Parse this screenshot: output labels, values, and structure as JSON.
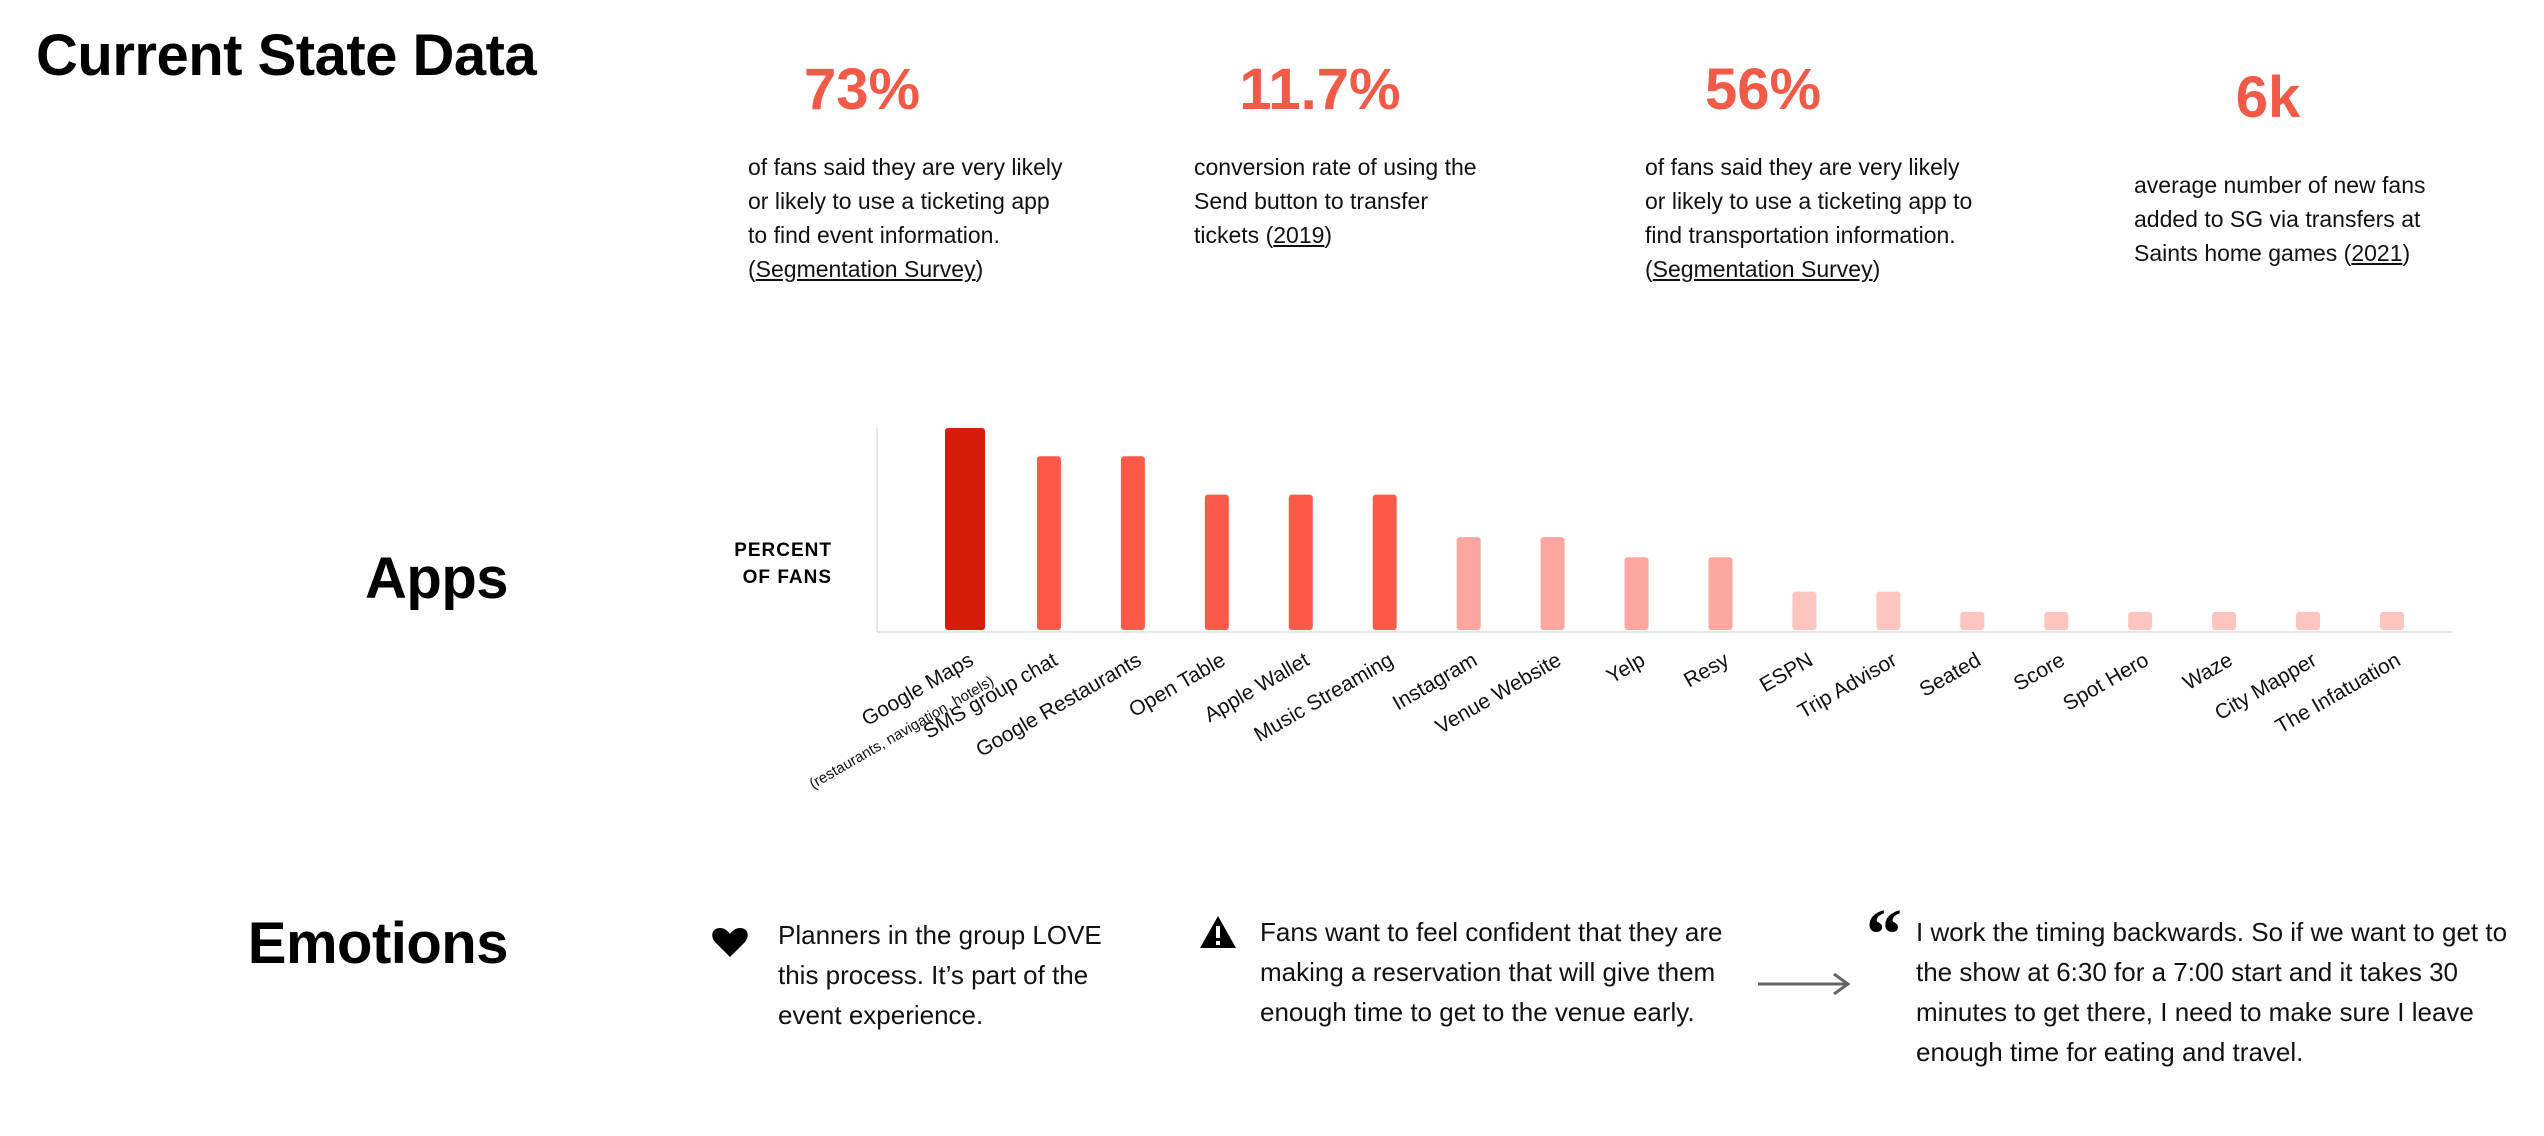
{
  "page_title": "Current State Data",
  "stats": [
    {
      "value": "73%",
      "pre": "of fans said they are very likely or likely to use a ticketing app to find event information. (",
      "link": "Segmentation Survey",
      "post": ")"
    },
    {
      "value": "11.7%",
      "pre": "conversion rate of using the Send button to transfer tickets (",
      "link": "2019",
      "post": ")"
    },
    {
      "value": "56%",
      "pre": "of fans said they are very likely or likely to use a ticketing app to find transportation information. (",
      "link": "Segmentation Survey",
      "post": ")"
    },
    {
      "value": "6k",
      "pre": "average number of new fans added to SG via transfers at Saints home games (",
      "link": "2021",
      "post": ")"
    }
  ],
  "sections": {
    "apps": "Apps",
    "emotions": "Emotions"
  },
  "chart_data": {
    "type": "bar",
    "title": "",
    "ylabel": "PERCENT OF FANS",
    "ylabel_lines": [
      "PERCENT",
      "OF FANS"
    ],
    "xlabel": "",
    "categories": [
      "Google Maps",
      "SMS group chat",
      "Google Restaurants",
      "Open Table",
      "Apple Wallet",
      "Music Streaming",
      "Instagram",
      "Venue Website",
      "Yelp",
      "Resy",
      "ESPN",
      "Trip Advisor",
      "Seated",
      "Score",
      "Spot Hero",
      "Waze",
      "City Mapper",
      "The Infatuation"
    ],
    "sublabel": {
      "category": "Google Maps",
      "text": "(restaurants, navigation, hotels)"
    },
    "values": [
      100,
      86,
      86,
      67,
      67,
      67,
      46,
      46,
      36,
      36,
      19,
      19,
      9,
      9,
      9,
      9,
      9,
      9
    ],
    "ylim": [
      0,
      100
    ],
    "colors": [
      "#d81c0b",
      "#fb5a48",
      "#fb5a48",
      "#fb5a48",
      "#fb5a48",
      "#fb5a48",
      "#fba79f",
      "#fba79f",
      "#fba79f",
      "#fba79f",
      "#fcc5bf",
      "#fcc5bf",
      "#fcc5bf",
      "#fcc5bf",
      "#fcc5bf",
      "#fcc5bf",
      "#fcc5bf",
      "#fcc5bf"
    ]
  },
  "emotions": [
    {
      "icon": "heart-icon",
      "text": "Planners in the group LOVE this process. It’s part of the event experience."
    },
    {
      "icon": "warning-icon",
      "text": "Fans want to feel confident that they are making a reservation that will give them enough time to get to the venue early."
    },
    {
      "icon": "quote-icon",
      "text": "I work the timing backwards. So if we want to get to the show at 6:30 for a 7:00 start and it takes 30 minutes to get there, I need to make sure I leave enough time for eating and travel."
    }
  ]
}
